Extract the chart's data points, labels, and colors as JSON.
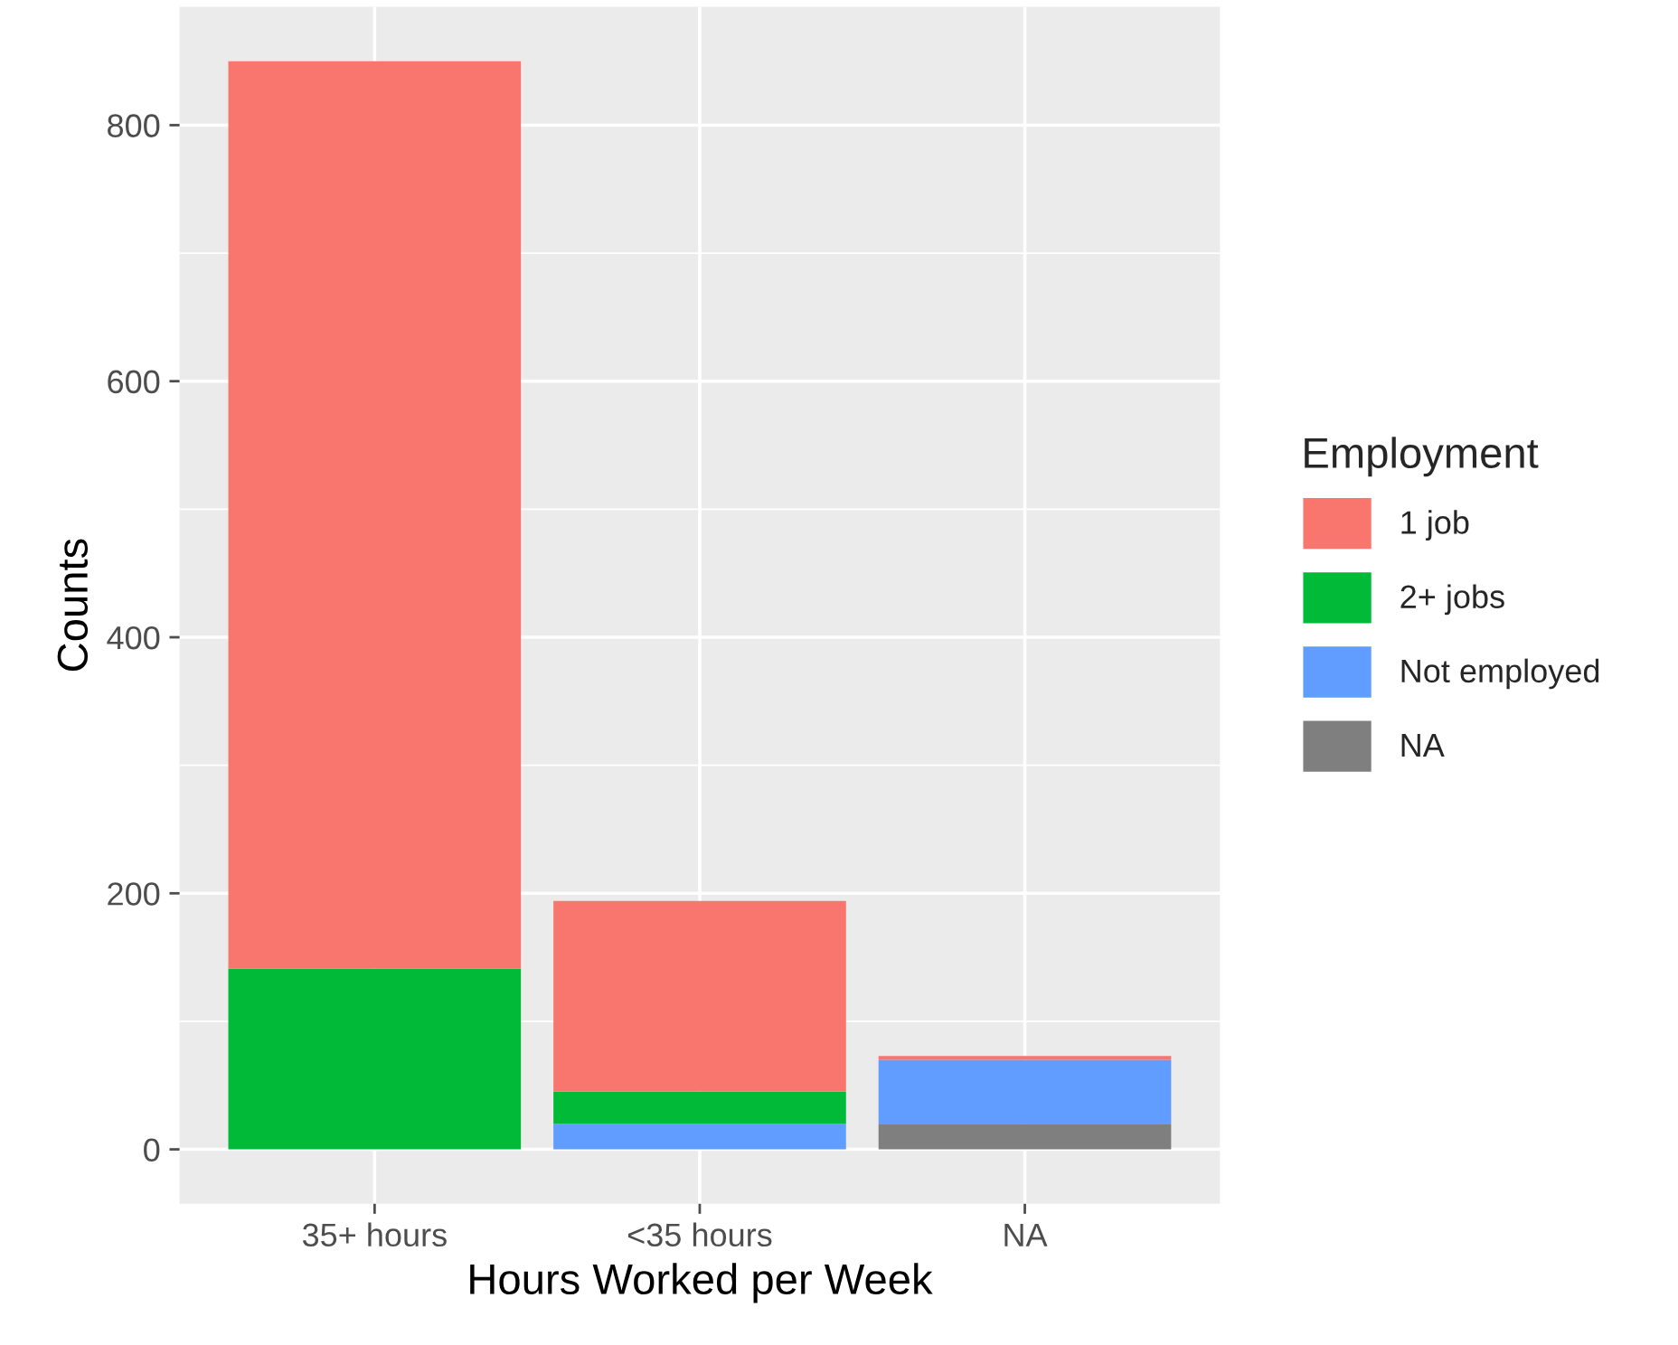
{
  "chart_data": {
    "type": "bar",
    "stacked": true,
    "xlabel": "Hours Worked per Week",
    "ylabel": "Counts",
    "legend_title": "Employment",
    "legend": "right",
    "grid": true,
    "categories": [
      "35+ hours",
      "<35 hours",
      "NA"
    ],
    "series": [
      {
        "name": "NA",
        "color": "#7f7f7f",
        "values": [
          0,
          0,
          20
        ]
      },
      {
        "name": "Not employed",
        "color": "#619cff",
        "values": [
          0,
          20,
          50
        ]
      },
      {
        "name": "2+ jobs",
        "color": "#00ba38",
        "values": [
          141,
          25,
          0
        ]
      },
      {
        "name": "1 job",
        "color": "#f8766d",
        "values": [
          709,
          149,
          3
        ]
      }
    ],
    "ylim": [
      -42.5,
      892.5
    ],
    "yticks": [
      0,
      200,
      400,
      600,
      800
    ]
  }
}
